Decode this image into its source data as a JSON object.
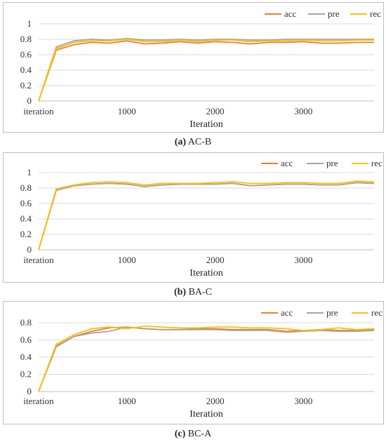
{
  "chart_data": [
    {
      "type": "line",
      "caption_label": "(a)",
      "caption_name": "AC-B",
      "xlabel": "Iteration",
      "x_tick_labels": [
        "iteration",
        "1000",
        "2000",
        "3000"
      ],
      "x_tick_values": [
        0,
        1000,
        2000,
        3000
      ],
      "ylim": [
        0,
        1
      ],
      "y_ticks": [
        0,
        0.2,
        0.4,
        0.6,
        0.8,
        1
      ],
      "y_tick_labels": [
        "0",
        "0.2",
        "0.4",
        "0.6",
        "0.8",
        "1"
      ],
      "legend_position": "top-right",
      "x": [
        0,
        200,
        400,
        600,
        800,
        1000,
        1200,
        1400,
        1600,
        1800,
        2000,
        2200,
        2400,
        2600,
        2800,
        3000,
        3200,
        3400,
        3600,
        3800
      ],
      "series": [
        {
          "name": "acc",
          "color": "#ED7D31",
          "values": [
            0,
            0.66,
            0.73,
            0.76,
            0.75,
            0.78,
            0.74,
            0.75,
            0.77,
            0.75,
            0.77,
            0.76,
            0.74,
            0.76,
            0.76,
            0.77,
            0.75,
            0.75,
            0.76,
            0.76
          ]
        },
        {
          "name": "pre",
          "color": "#A5A5A5",
          "values": [
            0,
            0.7,
            0.78,
            0.8,
            0.79,
            0.81,
            0.79,
            0.79,
            0.8,
            0.79,
            0.8,
            0.8,
            0.79,
            0.79,
            0.8,
            0.8,
            0.8,
            0.8,
            0.8,
            0.8
          ]
        },
        {
          "name": "rec",
          "color": "#FFC000",
          "values": [
            0,
            0.68,
            0.76,
            0.78,
            0.78,
            0.8,
            0.77,
            0.77,
            0.79,
            0.77,
            0.79,
            0.79,
            0.77,
            0.78,
            0.78,
            0.79,
            0.78,
            0.78,
            0.79,
            0.79
          ]
        }
      ]
    },
    {
      "type": "line",
      "caption_label": "(b)",
      "caption_name": "BA-C",
      "xlabel": "Iteration",
      "x_tick_labels": [
        "iteration",
        "1000",
        "2000",
        "3000"
      ],
      "x_tick_values": [
        0,
        1000,
        2000,
        3000
      ],
      "ylim": [
        0,
        1
      ],
      "y_ticks": [
        0,
        0.2,
        0.4,
        0.6,
        0.8,
        1
      ],
      "y_tick_labels": [
        "0",
        "0.2",
        "0.4",
        "0.6",
        "0.8",
        "1"
      ],
      "legend_position": "top-right",
      "x": [
        0,
        200,
        400,
        600,
        800,
        1000,
        1200,
        1400,
        1600,
        1800,
        2000,
        2200,
        2400,
        2600,
        2800,
        3000,
        3200,
        3400,
        3600,
        3800
      ],
      "series": [
        {
          "name": "acc",
          "color": "#ED7D31",
          "values": [
            0,
            0.77,
            0.83,
            0.85,
            0.86,
            0.85,
            0.82,
            0.84,
            0.85,
            0.85,
            0.85,
            0.86,
            0.83,
            0.84,
            0.85,
            0.85,
            0.84,
            0.84,
            0.87,
            0.86
          ]
        },
        {
          "name": "pre",
          "color": "#A5A5A5",
          "values": [
            0,
            0.77,
            0.83,
            0.85,
            0.86,
            0.85,
            0.82,
            0.84,
            0.85,
            0.85,
            0.85,
            0.86,
            0.83,
            0.84,
            0.85,
            0.85,
            0.84,
            0.84,
            0.87,
            0.86
          ]
        },
        {
          "name": "rec",
          "color": "#FFC000",
          "values": [
            0,
            0.79,
            0.84,
            0.87,
            0.88,
            0.87,
            0.84,
            0.86,
            0.86,
            0.86,
            0.87,
            0.88,
            0.86,
            0.86,
            0.87,
            0.87,
            0.86,
            0.86,
            0.89,
            0.88
          ]
        }
      ]
    },
    {
      "type": "line",
      "caption_label": "(c)",
      "caption_name": "BC-A",
      "xlabel": "Iteration",
      "x_tick_labels": [
        "iteration",
        "1000",
        "2000",
        "3000"
      ],
      "x_tick_values": [
        0,
        1000,
        2000,
        3000
      ],
      "ylim": [
        0,
        0.8
      ],
      "y_ticks": [
        0,
        0.2,
        0.4,
        0.6,
        0.8
      ],
      "y_tick_labels": [
        "0",
        "0.2",
        "0.4",
        "0.6",
        "0.8"
      ],
      "legend_position": "top-right",
      "x": [
        0,
        200,
        400,
        600,
        800,
        1000,
        1200,
        1400,
        1600,
        1800,
        2000,
        2200,
        2400,
        2600,
        2800,
        3000,
        3200,
        3400,
        3600,
        3800
      ],
      "series": [
        {
          "name": "acc",
          "color": "#ED7D31",
          "values": [
            0,
            0.53,
            0.64,
            0.7,
            0.74,
            0.75,
            0.73,
            0.72,
            0.72,
            0.73,
            0.73,
            0.72,
            0.72,
            0.72,
            0.7,
            0.71,
            0.72,
            0.71,
            0.71,
            0.72
          ]
        },
        {
          "name": "pre",
          "color": "#A5A5A5",
          "values": [
            0,
            0.52,
            0.64,
            0.68,
            0.7,
            0.75,
            0.73,
            0.72,
            0.72,
            0.72,
            0.72,
            0.71,
            0.71,
            0.71,
            0.69,
            0.7,
            0.71,
            0.7,
            0.7,
            0.71
          ]
        },
        {
          "name": "rec",
          "color": "#FFC000",
          "values": [
            0,
            0.55,
            0.66,
            0.73,
            0.75,
            0.73,
            0.76,
            0.75,
            0.74,
            0.74,
            0.75,
            0.75,
            0.74,
            0.74,
            0.73,
            0.71,
            0.72,
            0.74,
            0.72,
            0.73
          ]
        }
      ]
    }
  ]
}
